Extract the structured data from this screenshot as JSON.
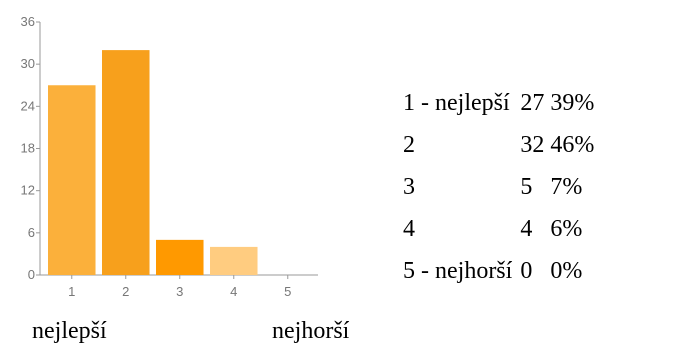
{
  "chart_data": {
    "type": "bar",
    "categories": [
      "1",
      "2",
      "3",
      "4",
      "5"
    ],
    "values": [
      27,
      32,
      5,
      4,
      0
    ],
    "colors": [
      "#fbb03b",
      "#f7a01c",
      "#ff9900",
      "#ffcc80",
      "#ffe0b2"
    ],
    "yticks": [
      "0",
      "6",
      "12",
      "18",
      "24",
      "30",
      "36"
    ],
    "ylim": [
      0,
      36
    ],
    "grid": false,
    "legend": "none"
  },
  "scale_captions": {
    "best": "nejlepší",
    "worst": "nejhorší"
  },
  "summary_rows": [
    {
      "label": "1 - nejlepší",
      "count": "27",
      "percent": "39%"
    },
    {
      "label": "2",
      "count": "32",
      "percent": "46%"
    },
    {
      "label": "3",
      "count": "5",
      "percent": "7%"
    },
    {
      "label": "4",
      "count": "4",
      "percent": "6%"
    },
    {
      "label": "5 - nejhorší",
      "count": "0",
      "percent": "0%"
    }
  ]
}
